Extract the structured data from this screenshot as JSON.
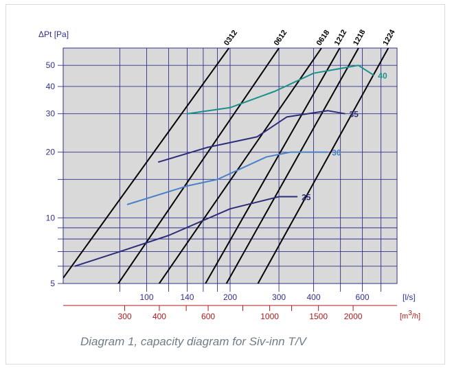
{
  "chart_data": {
    "type": "line",
    "title": "",
    "ylabel": "ΔPt [Pa]",
    "xlabel": "[l/s]",
    "x2label_main": "[m",
    "x2label_sup": "3",
    "x2label_tail": "/h]",
    "x_scale": "log",
    "y_scale": "log",
    "xlim": [
      50,
      800
    ],
    "ylim": [
      5,
      60
    ],
    "grid": true,
    "y_ticks": [
      {
        "v": 5,
        "label": "5"
      },
      {
        "v": 6,
        "label": ""
      },
      {
        "v": 7,
        "label": ""
      },
      {
        "v": 8,
        "label": ""
      },
      {
        "v": 9,
        "label": ""
      },
      {
        "v": 10,
        "label": "10"
      },
      {
        "v": 15,
        "label": ""
      },
      {
        "v": 20,
        "label": "20"
      },
      {
        "v": 30,
        "label": "30"
      },
      {
        "v": 40,
        "label": "40"
      },
      {
        "v": 50,
        "label": "50"
      }
    ],
    "x_grid": [
      80,
      100,
      120,
      140,
      160,
      180,
      200,
      300,
      400,
      500,
      600,
      700
    ],
    "x_ticks": [
      {
        "v": 100,
        "label": "100"
      },
      {
        "v": 140,
        "label": "140"
      },
      {
        "v": 200,
        "label": "200"
      },
      {
        "v": 300,
        "label": "300"
      },
      {
        "v": 400,
        "label": "400"
      },
      {
        "v": 600,
        "label": "600"
      }
    ],
    "x2_ticks": [
      {
        "v": 300,
        "label": "300"
      },
      {
        "v": 400,
        "label": "400"
      },
      {
        "v": 600,
        "label": "600"
      },
      {
        "v": 1000,
        "label": "1000"
      },
      {
        "v": 1500,
        "label": "1500"
      },
      {
        "v": 2000,
        "label": "2000"
      }
    ],
    "x2_minor": [
      500,
      800,
      1200
    ],
    "model_lines": [
      {
        "name": "0312",
        "x": [
          50,
          198
        ],
        "y": [
          5.3,
          60
        ]
      },
      {
        "name": "0612",
        "x": [
          79,
          300
        ],
        "y": [
          5,
          60
        ]
      },
      {
        "name": "0618",
        "x": [
          111,
          427
        ],
        "y": [
          5,
          60
        ]
      },
      {
        "name": "1212",
        "x": [
          163,
          497
        ],
        "y": [
          5,
          60
        ]
      },
      {
        "name": "1218",
        "x": [
          194,
          581
        ],
        "y": [
          5,
          60
        ]
      },
      {
        "name": "1224",
        "x": [
          252,
          744
        ],
        "y": [
          5,
          60
        ]
      }
    ],
    "series": [
      {
        "name": "40",
        "color": "#1a8f8c",
        "x": [
          140,
          200,
          290,
          400,
          580,
          660
        ],
        "y": [
          30,
          32,
          38,
          46,
          50,
          45
        ]
      },
      {
        "name": "35",
        "color": "#2b2d7a",
        "x": [
          110,
          165,
          250,
          320,
          450,
          520
        ],
        "y": [
          18,
          21,
          23.5,
          29,
          31,
          30
        ]
      },
      {
        "name": "30",
        "color": "#4a80c8",
        "x": [
          85,
          140,
          180,
          270,
          330,
          450
        ],
        "y": [
          11.5,
          14,
          15,
          19,
          20,
          20
        ]
      },
      {
        "name": "25",
        "color": "#2b2d7a",
        "x": [
          55,
          80,
          120,
          200,
          300,
          350
        ],
        "y": [
          6,
          7,
          8.3,
          11,
          12.5,
          12.5
        ]
      }
    ]
  },
  "caption": "Diagram 1, capacity diagram for Siv-inn T/V",
  "colors": {
    "plot_bg": "#d9d9d9",
    "grid": "#2e2f8a",
    "axis_text": "#2e2f8a",
    "secondary_axis": "#b01919",
    "model_line": "#000000"
  }
}
